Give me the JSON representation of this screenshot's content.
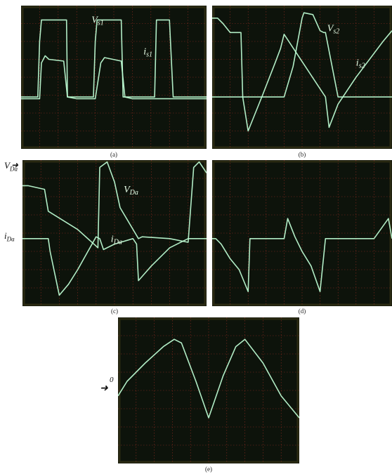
{
  "colors": {
    "trace": "#bfffd6",
    "grid": "#8a2a20",
    "screen": "#0d130b",
    "screen_edge": "#2a2a12"
  },
  "panels": [
    {
      "id": "a",
      "caption": "(a)",
      "labels": [
        {
          "base": "V",
          "sub": "s1"
        },
        {
          "base": "i",
          "sub": "s1"
        }
      ]
    },
    {
      "id": "b",
      "caption": "(b)",
      "labels": [
        {
          "base": "V",
          "sub": "s2"
        },
        {
          "base": "i",
          "sub": "s2"
        }
      ]
    },
    {
      "id": "c",
      "caption": "(c)",
      "labels": [
        {
          "base": "V",
          "sub": "Da"
        },
        {
          "base": "i",
          "sub": "Da"
        }
      ],
      "outer_labels": [
        {
          "base": "V",
          "sub": "Da",
          "zero": "0"
        },
        {
          "base": "i",
          "sub": "Da",
          "zero": "0"
        }
      ]
    },
    {
      "id": "d",
      "caption": "(d)",
      "labels": []
    },
    {
      "id": "e",
      "caption": "(e)",
      "labels": [],
      "zero_marker": "0"
    }
  ],
  "chart_data": [
    {
      "type": "line",
      "panel": "a",
      "title": "",
      "xlim": [
        0,
        10
      ],
      "ylim": [
        -4,
        4
      ],
      "series": [
        {
          "name": "Vs1",
          "x": [
            0,
            0.5,
            0.9,
            1.0,
            1.1,
            1.2,
            2.4,
            2.45,
            2.5,
            2.55,
            3.0,
            3.7,
            3.9,
            4.0,
            4.1,
            4.2,
            5.4,
            5.5,
            5.6,
            6.0,
            6.8,
            7.2,
            7.3,
            8.0,
            8.2,
            9.0,
            10
          ],
          "y": [
            -1.1,
            -1.1,
            -1.1,
            2.0,
            3.2,
            3.2,
            3.2,
            3.2,
            -1.1,
            -1.1,
            -1.1,
            -1.1,
            -1.1,
            2.0,
            3.2,
            3.2,
            3.2,
            -1.1,
            -1.1,
            -1.1,
            -1.1,
            -1.1,
            3.2,
            3.2,
            -1.1,
            -1.1,
            -1.1
          ]
        },
        {
          "name": "is1",
          "x": [
            0,
            0.8,
            1.0,
            1.1,
            1.3,
            1.5,
            2.3,
            2.5,
            3.0,
            3.6,
            4.0,
            4.3,
            4.5,
            5.4,
            5.6,
            6.0,
            6.5,
            7.2,
            7.4,
            8.0,
            9.0,
            10
          ],
          "y": [
            -1.2,
            -1.2,
            -1.2,
            0.8,
            1.2,
            1.0,
            0.9,
            -1.1,
            -1.2,
            -1.2,
            -1.2,
            0.8,
            1.1,
            0.9,
            -1.1,
            -1.2,
            -1.2,
            -1.2,
            -1.2,
            -1.2,
            -1.2,
            -1.2
          ]
        }
      ]
    },
    {
      "type": "line",
      "panel": "b",
      "title": "",
      "xlim": [
        0,
        10
      ],
      "ylim": [
        -4,
        4
      ],
      "series": [
        {
          "name": "Vs2",
          "x": [
            0,
            0.3,
            0.6,
            1.0,
            1.6,
            1.7,
            1.8,
            3.0,
            4.0,
            4.5,
            5.0,
            5.1,
            5.6,
            6.0,
            6.2,
            6.3,
            7.0,
            8.0,
            9.0,
            10
          ],
          "y": [
            3.3,
            3.3,
            3.0,
            2.5,
            2.5,
            -1.1,
            -1.1,
            -1.1,
            -1.1,
            0.6,
            3.3,
            3.6,
            3.5,
            2.6,
            2.5,
            2.5,
            -1.1,
            -1.1,
            -1.1,
            -1.1
          ]
        },
        {
          "name": "is2",
          "x": [
            0,
            1.7,
            2.0,
            2.8,
            3.5,
            3.8,
            4.0,
            6.3,
            6.5,
            7.0,
            8.0,
            9.5,
            10
          ],
          "y": [
            -1.1,
            -1.1,
            -3.0,
            -1.0,
            0.8,
            1.6,
            2.4,
            -1.1,
            -2.8,
            -1.5,
            0.0,
            2.0,
            2.6
          ]
        }
      ]
    },
    {
      "type": "line",
      "panel": "c",
      "title": "",
      "xlim": [
        0,
        10
      ],
      "ylim": [
        -4,
        4
      ],
      "series": [
        {
          "name": "VDa",
          "x": [
            0,
            0.3,
            1.2,
            1.4,
            3.0,
            4.1,
            4.2,
            4.6,
            5.0,
            5.3,
            6.3,
            6.5,
            8.0,
            9.0,
            9.3,
            9.6,
            10
          ],
          "y": [
            2.6,
            2.6,
            2.4,
            1.2,
            0.2,
            -0.8,
            3.6,
            3.9,
            2.8,
            1.4,
            -0.3,
            -0.2,
            -0.3,
            -0.5,
            3.6,
            3.9,
            3.3
          ]
        },
        {
          "name": "iDa",
          "x": [
            0,
            1.4,
            1.5,
            2.0,
            2.5,
            3.0,
            4.0,
            4.2,
            4.4,
            5.0,
            6.0,
            6.2,
            6.3,
            7.0,
            8.0,
            9.0,
            9.3,
            10
          ],
          "y": [
            -0.3,
            -0.3,
            -1.0,
            -3.4,
            -2.8,
            -2.0,
            -0.2,
            -0.3,
            -0.9,
            -0.6,
            -0.3,
            -0.6,
            -2.6,
            -1.8,
            -0.8,
            -0.3,
            -0.3,
            -0.3
          ]
        }
      ]
    },
    {
      "type": "line",
      "panel": "d",
      "title": "",
      "xlim": [
        0,
        10
      ],
      "ylim": [
        -4,
        4
      ],
      "series": [
        {
          "name": "trace",
          "x": [
            0,
            0.2,
            0.5,
            1.0,
            1.5,
            2.0,
            2.1,
            2.5,
            3.0,
            4.0,
            4.2,
            4.6,
            5.0,
            5.5,
            6.0,
            6.3,
            7.0,
            8.0,
            9.0,
            9.8,
            10
          ],
          "y": [
            -0.3,
            -0.3,
            -0.6,
            -1.4,
            -2.0,
            -3.2,
            -0.3,
            -0.3,
            -0.3,
            -0.3,
            0.8,
            -0.2,
            -1.0,
            -1.8,
            -3.2,
            -0.3,
            -0.3,
            -0.3,
            -0.3,
            0.8,
            -0.3
          ]
        }
      ]
    },
    {
      "type": "line",
      "panel": "e",
      "title": "",
      "xlim": [
        0,
        10
      ],
      "ylim": [
        -4,
        4
      ],
      "series": [
        {
          "name": "trace",
          "x": [
            0,
            0.5,
            1.5,
            2.5,
            3.1,
            3.5,
            4.3,
            5.0,
            5.8,
            6.5,
            7.0,
            8.0,
            9.0,
            10
          ],
          "y": [
            -0.3,
            0.5,
            1.5,
            2.4,
            2.8,
            2.6,
            0.5,
            -1.5,
            0.8,
            2.4,
            2.8,
            1.5,
            -0.3,
            -1.5
          ]
        }
      ]
    }
  ]
}
